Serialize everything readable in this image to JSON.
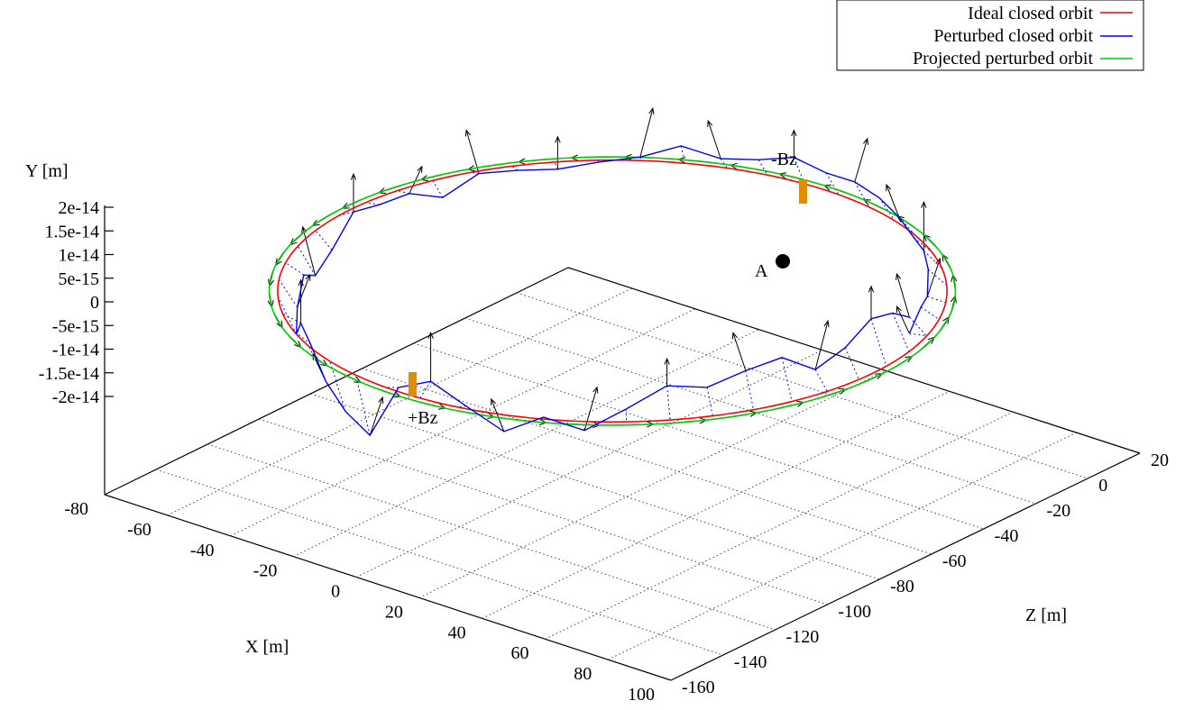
{
  "chart_data": {
    "type": "line",
    "view": "3d-perspective",
    "axes": {
      "x": {
        "label": "X [m]",
        "range": [
          -80,
          100
        ],
        "ticks": [
          "-80",
          "-60",
          "-40",
          "-20",
          "0",
          "20",
          "40",
          "60",
          "80",
          "100"
        ]
      },
      "z": {
        "label": "Z [m]",
        "range": [
          -160,
          20
        ],
        "ticks": [
          "-160",
          "-140",
          "-120",
          "-100",
          "-80",
          "-60",
          "-40",
          "-20",
          "0",
          "20"
        ]
      },
      "y": {
        "label": "Y [m]",
        "range": [
          -2e-14,
          2e-14
        ],
        "ticks": [
          "2e-14",
          "1.5e-14",
          "1e-14",
          "5e-15",
          "0",
          "-5e-15",
          "-1e-14",
          "-1.5e-14",
          "-2e-14"
        ]
      }
    },
    "grid": "on (floor plane)",
    "legend_position": "top-right",
    "series": [
      {
        "name": "Ideal closed orbit",
        "color": "#ff0000"
      },
      {
        "name": "Perturbed closed orbit",
        "color": "#0000ff",
        "y_values": [
          0.0,
          2e-15,
          1e-15,
          3e-15,
          3.5e-15,
          3e-15,
          4e-15,
          5e-15,
          5.5e-15,
          5e-15,
          6e-15,
          4e-15,
          3e-15,
          4.5e-15,
          2e-15,
          1e-15,
          0.0,
          5e-16,
          1e-15,
          -2e-15,
          5e-16,
          5e-16,
          1.5e-15,
          -3e-15,
          -5e-15,
          -2e-15,
          -5e-15,
          -7e-15,
          -2e-15,
          -3e-15,
          -7e-15,
          -1e-14,
          -1.2e-14,
          -1e-15,
          2e-15,
          -1e-15,
          -4.5e-15,
          -1e-15,
          -3e-15,
          1e-15,
          5e-15,
          4e-15,
          6e-15,
          7e-15,
          3e-15,
          5e-15,
          8e-15,
          6.5e-15,
          3e-15
        ]
      },
      {
        "name": "Projected perturbed orbit",
        "color": "#00cc00"
      }
    ],
    "annotations": [
      "-Bz",
      "+Bz",
      "A"
    ]
  },
  "colors": {
    "ideal": "#ff0000",
    "perturbed": "#0000ff",
    "projected": "#00cc00",
    "kicker": "#e08e00"
  }
}
